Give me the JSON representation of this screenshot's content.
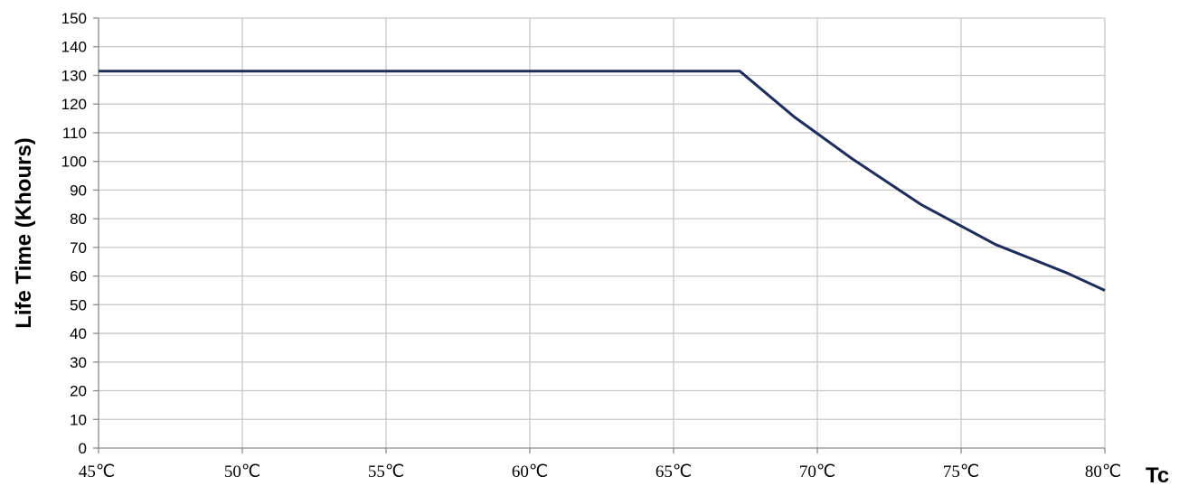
{
  "chart_data": {
    "type": "line",
    "title": "",
    "xlabel": "Tc",
    "ylabel": "Life Time (Khours)",
    "xlim": [
      45,
      80
    ],
    "ylim": [
      0,
      150
    ],
    "x_ticks": [
      "45℃",
      "50℃",
      "55℃",
      "60℃",
      "65℃",
      "70℃",
      "75℃",
      "80℃"
    ],
    "x_tick_values": [
      45,
      50,
      55,
      60,
      65,
      70,
      75,
      80
    ],
    "y_ticks": [
      "0",
      "10",
      "20",
      "30",
      "40",
      "50",
      "60",
      "70",
      "80",
      "90",
      "100",
      "110",
      "120",
      "130",
      "140",
      "150"
    ],
    "y_tick_values": [
      0,
      10,
      20,
      30,
      40,
      50,
      60,
      70,
      80,
      90,
      100,
      110,
      120,
      130,
      140,
      150
    ],
    "grid": true,
    "legend": "none",
    "series": [
      {
        "color": "#1f2d5c",
        "x": [
          45,
          67.3,
          69.2,
          71.2,
          73.6,
          76.2,
          78.7,
          80
        ],
        "y": [
          131.5,
          131.5,
          115.5,
          101,
          85,
          71,
          61,
          55
        ]
      }
    ]
  }
}
